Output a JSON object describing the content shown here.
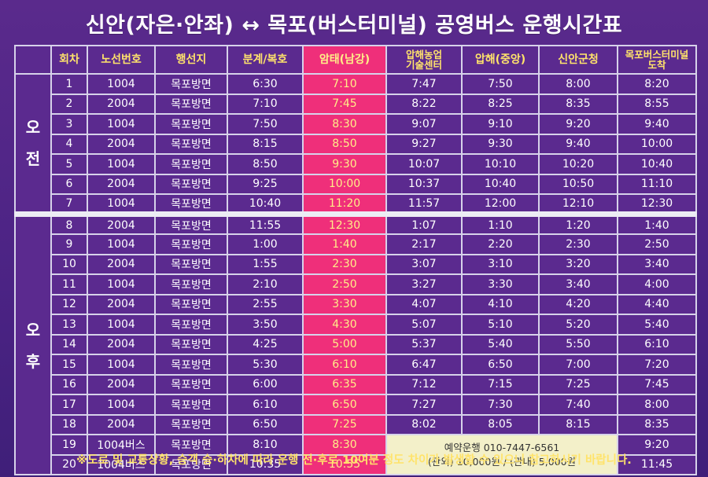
{
  "title": "신안(자은·안좌) ↔ 목포(버스터미널) 공영버스 운행시간표",
  "headers": [
    "회차",
    "노선번호",
    "행선지",
    "분계/복호",
    "암태(남강)",
    "압해농업 기술센터",
    "압해(중앙)",
    "신안군청",
    "목포버스터미널 도착"
  ],
  "header_lines": {
    "agri_line1": "압해농업",
    "agri_line2": "기술센터",
    "terminal_line1": "목포버스터미널",
    "terminal_line2": "도착"
  },
  "periods": {
    "am": "오 전",
    "pm": "오 후"
  },
  "am_rows": [
    {
      "no": "1",
      "route": "1004",
      "dest": "목포방면",
      "bungye": "6:30",
      "amtae": "7:10",
      "agri": "7:47",
      "aphae": "7:50",
      "office": "8:00",
      "terminal": "8:20"
    },
    {
      "no": "2",
      "route": "2004",
      "dest": "목포방면",
      "bungye": "7:10",
      "amtae": "7:45",
      "agri": "8:22",
      "aphae": "8:25",
      "office": "8:35",
      "terminal": "8:55"
    },
    {
      "no": "3",
      "route": "1004",
      "dest": "목포방면",
      "bungye": "7:50",
      "amtae": "8:30",
      "agri": "9:07",
      "aphae": "9:10",
      "office": "9:20",
      "terminal": "9:40"
    },
    {
      "no": "4",
      "route": "2004",
      "dest": "목포방면",
      "bungye": "8:15",
      "amtae": "8:50",
      "agri": "9:27",
      "aphae": "9:30",
      "office": "9:40",
      "terminal": "10:00"
    },
    {
      "no": "5",
      "route": "1004",
      "dest": "목포방면",
      "bungye": "8:50",
      "amtae": "9:30",
      "agri": "10:07",
      "aphae": "10:10",
      "office": "10:20",
      "terminal": "10:40"
    },
    {
      "no": "6",
      "route": "2004",
      "dest": "목포방면",
      "bungye": "9:25",
      "amtae": "10:00",
      "agri": "10:37",
      "aphae": "10:40",
      "office": "10:50",
      "terminal": "11:10"
    },
    {
      "no": "7",
      "route": "1004",
      "dest": "목포방면",
      "bungye": "10:40",
      "amtae": "11:20",
      "agri": "11:57",
      "aphae": "12:00",
      "office": "12:10",
      "terminal": "12:30"
    }
  ],
  "pm_rows": [
    {
      "no": "8",
      "route": "2004",
      "dest": "목포방면",
      "bungye": "11:55",
      "amtae": "12:30",
      "agri": "1:07",
      "aphae": "1:10",
      "office": "1:20",
      "terminal": "1:40"
    },
    {
      "no": "9",
      "route": "1004",
      "dest": "목포방면",
      "bungye": "1:00",
      "amtae": "1:40",
      "agri": "2:17",
      "aphae": "2:20",
      "office": "2:30",
      "terminal": "2:50"
    },
    {
      "no": "10",
      "route": "2004",
      "dest": "목포방면",
      "bungye": "1:55",
      "amtae": "2:30",
      "agri": "3:07",
      "aphae": "3:10",
      "office": "3:20",
      "terminal": "3:40"
    },
    {
      "no": "11",
      "route": "1004",
      "dest": "목포방면",
      "bungye": "2:10",
      "amtae": "2:50",
      "agri": "3:27",
      "aphae": "3:30",
      "office": "3:40",
      "terminal": "4:00"
    },
    {
      "no": "12",
      "route": "2004",
      "dest": "목포방면",
      "bungye": "2:55",
      "amtae": "3:30",
      "agri": "4:07",
      "aphae": "4:10",
      "office": "4:20",
      "terminal": "4:40"
    },
    {
      "no": "13",
      "route": "1004",
      "dest": "목포방면",
      "bungye": "3:50",
      "amtae": "4:30",
      "agri": "5:07",
      "aphae": "5:10",
      "office": "5:20",
      "terminal": "5:40"
    },
    {
      "no": "14",
      "route": "2004",
      "dest": "목포방면",
      "bungye": "4:25",
      "amtae": "5:00",
      "agri": "5:37",
      "aphae": "5:40",
      "office": "5:50",
      "terminal": "6:10"
    },
    {
      "no": "15",
      "route": "1004",
      "dest": "목포방면",
      "bungye": "5:30",
      "amtae": "6:10",
      "agri": "6:47",
      "aphae": "6:50",
      "office": "7:00",
      "terminal": "7:20"
    },
    {
      "no": "16",
      "route": "2004",
      "dest": "목포방면",
      "bungye": "6:00",
      "amtae": "6:35",
      "agri": "7:12",
      "aphae": "7:15",
      "office": "7:25",
      "terminal": "7:45"
    },
    {
      "no": "17",
      "route": "1004",
      "dest": "목포방면",
      "bungye": "6:10",
      "amtae": "6:50",
      "agri": "7:27",
      "aphae": "7:30",
      "office": "7:40",
      "terminal": "8:00"
    },
    {
      "no": "18",
      "route": "2004",
      "dest": "목포방면",
      "bungye": "6:50",
      "amtae": "7:25",
      "agri": "8:02",
      "aphae": "8:05",
      "office": "8:15",
      "terminal": "8:35"
    }
  ],
  "reservation_rows": [
    {
      "no": "19",
      "route": "1004버스",
      "dest": "목포방면",
      "bungye": "8:10",
      "amtae": "8:30",
      "terminal": "9:20"
    },
    {
      "no": "20",
      "route": "1004버스",
      "dest": "목포방면",
      "bungye": "10:35",
      "amtae": "10:55",
      "terminal": "11:45"
    }
  ],
  "reservation_note": {
    "line1": "예약운행 010-7447-6561",
    "line2": "(관외) 10,000원 / (관내) 5,000원"
  },
  "footer": "※도로 및 교통상황, 승객 승·하차에 따라 운행 전·후로 10여분 정도 차이가 발생할 수 있으니 참고하시기 바랍니다.",
  "colors": {
    "background": "#5b2a8f",
    "highlight_column": "#ef2f7a",
    "header_text": "#ffe36b",
    "note_box": "#f3f0c9"
  }
}
